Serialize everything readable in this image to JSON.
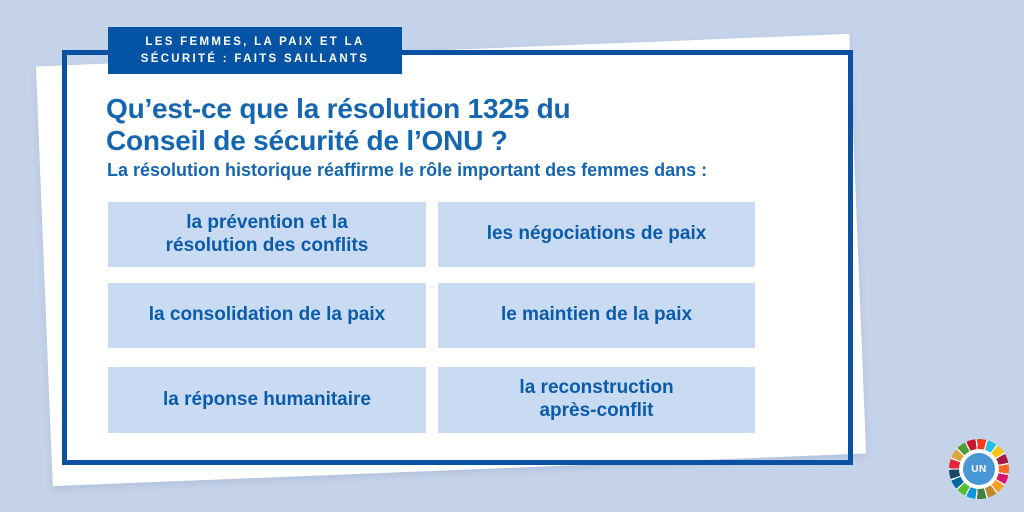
{
  "colors": {
    "background": "#c5d3ea",
    "card": "#ffffff",
    "frame": "#0a51a1",
    "badge_bg": "#0553a4",
    "badge_text": "#ffffff",
    "heading_text": "#1566b1",
    "box_bg": "#c9dbf2",
    "box_text": "#0b5bac",
    "un_blue": "#4a97d5"
  },
  "badge": {
    "text": "LES FEMMES, LA PAIX ET LA\nSÉCURITÉ : FAITS SAILLANTS"
  },
  "heading": "Qu’est-ce que la résolution 1325 du\nConseil de sécurité de l’ONU ?",
  "subheading": "La résolution historique réaffirme le rôle important des femmes dans :",
  "boxes": [
    "la prévention et la\nrésolution des conflits",
    "les négociations de paix",
    "la consolidation de la paix",
    "le maintien de la paix",
    "la réponse humanitaire",
    "la reconstruction\naprès-conflit"
  ],
  "logo": {
    "label": "UN",
    "sdg_colors": [
      "#e5243b",
      "#dda63a",
      "#4c9f38",
      "#c5192d",
      "#ff3a21",
      "#26bde2",
      "#fcc30b",
      "#a21942",
      "#fd6925",
      "#dd1367",
      "#fd9d24",
      "#bf8b2e",
      "#3f7e44",
      "#0a97d9",
      "#56c02b",
      "#00689d",
      "#19486a"
    ]
  }
}
